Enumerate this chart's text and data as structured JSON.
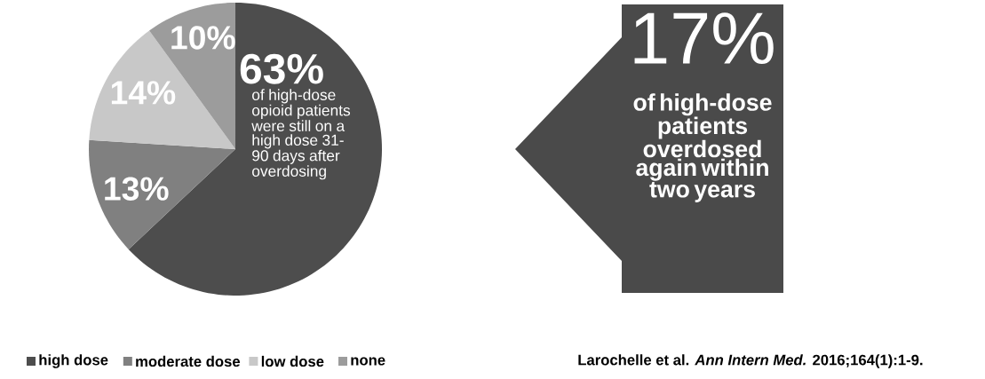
{
  "chart_data": {
    "type": "pie",
    "categories": [
      "high dose",
      "moderate dose",
      "low dose",
      "none"
    ],
    "values": [
      63,
      13,
      14,
      10
    ],
    "value_labels": [
      "63%",
      "13%",
      "14%",
      "10%"
    ],
    "colors": [
      "#4d4d4d",
      "#808080",
      "#c8c8c8",
      "#9c9c9c"
    ],
    "legend": "bottom",
    "annotations": [
      "of high-dose opioid patients were still on a high dose 31-90 days after overdosing",
      "17%",
      "of high-dose patients overdosed again within two years",
      "Larochelle et al. *Ann Intern Med.* 2016;164(1):1-9."
    ]
  }
}
